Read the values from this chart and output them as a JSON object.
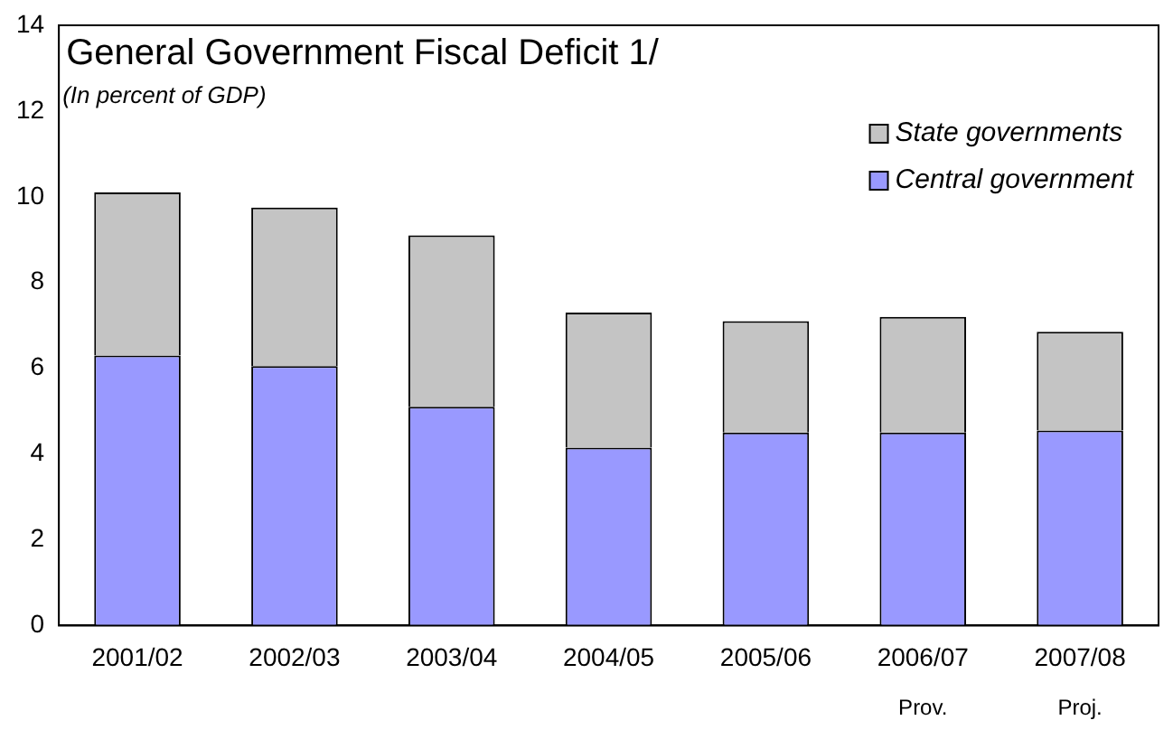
{
  "chart_data": {
    "type": "bar",
    "title": "General Government Fiscal Deficit 1/",
    "subtitle": "(In percent of GDP)",
    "categories": [
      "2001/02",
      "2002/03",
      "2003/04",
      "2004/05",
      "2005/06",
      "2006/07",
      "2007/08"
    ],
    "series": [
      {
        "name": "Central government",
        "color": "#9999ff",
        "values": [
          6.3,
          6.05,
          5.1,
          4.15,
          4.5,
          4.5,
          4.55
        ]
      },
      {
        "name": "State governments",
        "color": "#c4c4c4",
        "values": [
          3.8,
          3.7,
          4.0,
          3.15,
          2.6,
          2.7,
          2.3
        ]
      }
    ],
    "stacked": true,
    "ylim": [
      0,
      14
    ],
    "yticks": [
      0,
      2,
      4,
      6,
      8,
      10,
      12,
      14
    ],
    "grid": false,
    "legend": "top right",
    "annotations": [
      "Prov.",
      "Proj."
    ]
  }
}
